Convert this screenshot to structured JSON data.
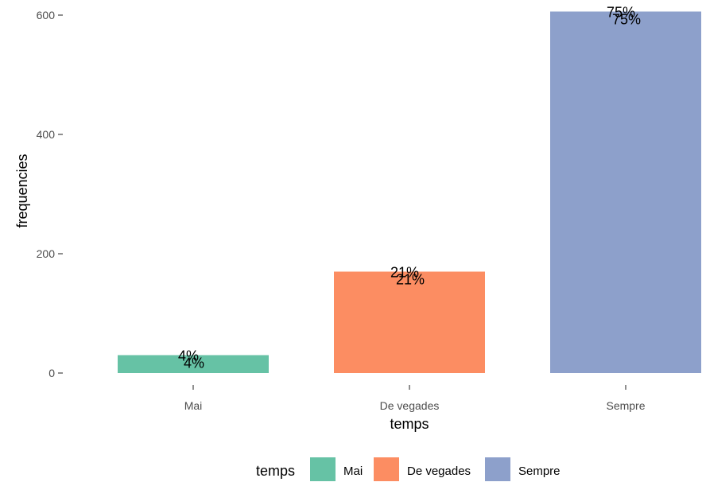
{
  "chart_data": {
    "type": "bar",
    "categories": [
      "Mai",
      "De vegades",
      "Sempre"
    ],
    "values": [
      30,
      170,
      606
    ],
    "percent_labels": [
      "4%",
      "21%",
      "75%"
    ],
    "colors": [
      "#66C2A5",
      "#FC8D62",
      "#8DA0CB"
    ],
    "xlabel": "temps",
    "ylabel": "frequencies",
    "ylim": [
      0,
      620
    ],
    "yticks": [
      0,
      200,
      400,
      600
    ],
    "grid": false,
    "legend": {
      "title": "temps",
      "position": "bottom",
      "items": [
        "Mai",
        "De vegades",
        "Sempre"
      ]
    }
  }
}
